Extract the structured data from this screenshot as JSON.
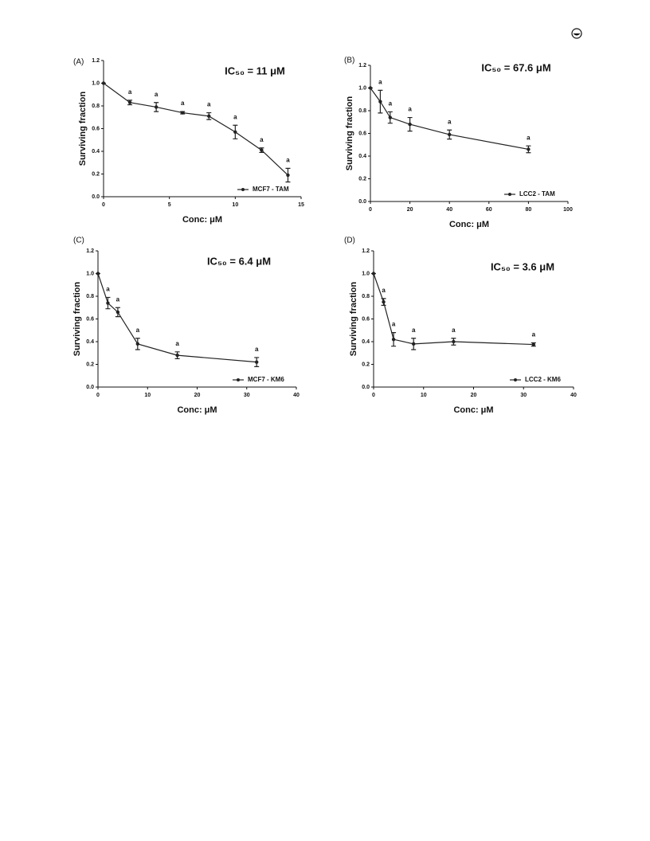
{
  "chart_data": [
    {
      "type": "line",
      "panel": "(A)",
      "title": "IC₅₀ = 11 μM",
      "xlabel": "Conc: μM",
      "ylabel": "Surviving fraction",
      "x": [
        0,
        2,
        4,
        6,
        8,
        10,
        12,
        14
      ],
      "series": [
        {
          "name": "MCF7 - TAM",
          "color": "#222222",
          "values": [
            1.0,
            0.83,
            0.79,
            0.74,
            0.71,
            0.57,
            0.41,
            0.19
          ],
          "errors": [
            0,
            0.02,
            0.04,
            0.01,
            0.03,
            0.06,
            0.02,
            0.06
          ]
        }
      ],
      "annotations": [
        {
          "text": "a",
          "x": 2
        },
        {
          "text": "a",
          "x": 4
        },
        {
          "text": "a",
          "x": 6
        },
        {
          "text": "a",
          "x": 8
        },
        {
          "text": "a",
          "x": 10
        },
        {
          "text": "a",
          "x": 12
        },
        {
          "text": "a",
          "x": 14
        }
      ],
      "xlim": [
        0,
        15
      ],
      "xticks": [
        0,
        5,
        10,
        15
      ],
      "ylim": [
        0,
        1.2
      ],
      "yticks": [
        {
          "value": 0,
          "label": "0.0"
        },
        0.2,
        0.4,
        0.6,
        0.8,
        {
          "value": 1,
          "label": "1.0"
        },
        1.2
      ],
      "legend": "lower right"
    },
    {
      "type": "line",
      "panel": "(B)",
      "title": "IC₅₀ = 67.6 μM",
      "xlabel": "Conc: μM",
      "ylabel": "Surviving fraction",
      "x": [
        0,
        5,
        10,
        20,
        40,
        80
      ],
      "series": [
        {
          "name": "LCC2 - TAM",
          "color": "#222222",
          "values": [
            1.0,
            0.88,
            0.74,
            0.68,
            0.59,
            0.46
          ],
          "errors": [
            0,
            0.1,
            0.05,
            0.06,
            0.04,
            0.03
          ]
        }
      ],
      "annotations": [
        {
          "text": "a",
          "x": 5
        },
        {
          "text": "a",
          "x": 10
        },
        {
          "text": "a",
          "x": 20
        },
        {
          "text": "a",
          "x": 40
        },
        {
          "text": "a",
          "x": 80
        }
      ],
      "xlim": [
        0,
        100
      ],
      "xticks": [
        0,
        20,
        40,
        60,
        80,
        100
      ],
      "ylim": [
        0,
        1.2
      ],
      "yticks": [
        {
          "value": 0,
          "label": "0.0"
        },
        0.2,
        0.4,
        0.6,
        0.8,
        {
          "value": 1,
          "label": "1.0"
        },
        1.2
      ],
      "legend": "lower right"
    },
    {
      "type": "line",
      "panel": "(C)",
      "title": "IC₅₀ = 6.4 μM",
      "xlabel": "Conc: μM",
      "ylabel": "Surviving fraction",
      "x": [
        0,
        2,
        4,
        8,
        16,
        32
      ],
      "series": [
        {
          "name": "MCF7 - KM6",
          "color": "#222222",
          "values": [
            1.0,
            0.74,
            0.66,
            0.38,
            0.28,
            0.22
          ],
          "errors": [
            0,
            0.05,
            0.04,
            0.05,
            0.03,
            0.04
          ]
        }
      ],
      "annotations": [
        {
          "text": "a",
          "x": 2
        },
        {
          "text": "a",
          "x": 4
        },
        {
          "text": "a",
          "x": 8
        },
        {
          "text": "a",
          "x": 16
        },
        {
          "text": "a",
          "x": 32
        }
      ],
      "xlim": [
        0,
        40
      ],
      "xticks": [
        0,
        10,
        20,
        30,
        40
      ],
      "ylim": [
        0,
        1.2
      ],
      "yticks": [
        {
          "value": 0,
          "label": "0.0"
        },
        0.2,
        0.4,
        0.6,
        0.8,
        {
          "value": 1,
          "label": "1.0"
        },
        1.2
      ],
      "legend": "lower right"
    },
    {
      "type": "line",
      "panel": "(D)",
      "title": "IC₅₀ = 3.6 μM",
      "xlabel": "Conc: μM",
      "ylabel": "Surviving fraction",
      "x": [
        0,
        2,
        4,
        8,
        16,
        32
      ],
      "series": [
        {
          "name": "LCC2 - KM6",
          "color": "#222222",
          "values": [
            1.0,
            0.75,
            0.42,
            0.38,
            0.4,
            0.375
          ],
          "errors": [
            0,
            0.03,
            0.06,
            0.05,
            0.03,
            0.015
          ]
        }
      ],
      "annotations": [
        {
          "text": "a",
          "x": 2
        },
        {
          "text": "a",
          "x": 4
        },
        {
          "text": "a",
          "x": 8
        },
        {
          "text": "a",
          "x": 16
        },
        {
          "text": "a",
          "x": 32
        }
      ],
      "xlim": [
        0,
        40
      ],
      "xticks": [
        0,
        10,
        20,
        30,
        40
      ],
      "ylim": [
        0,
        1.2
      ],
      "yticks": [
        {
          "value": 0,
          "label": "0.0"
        },
        0.2,
        0.4,
        0.6,
        0.8,
        {
          "value": 1,
          "label": "1.0"
        },
        1.2
      ],
      "legend": "lower right"
    }
  ]
}
